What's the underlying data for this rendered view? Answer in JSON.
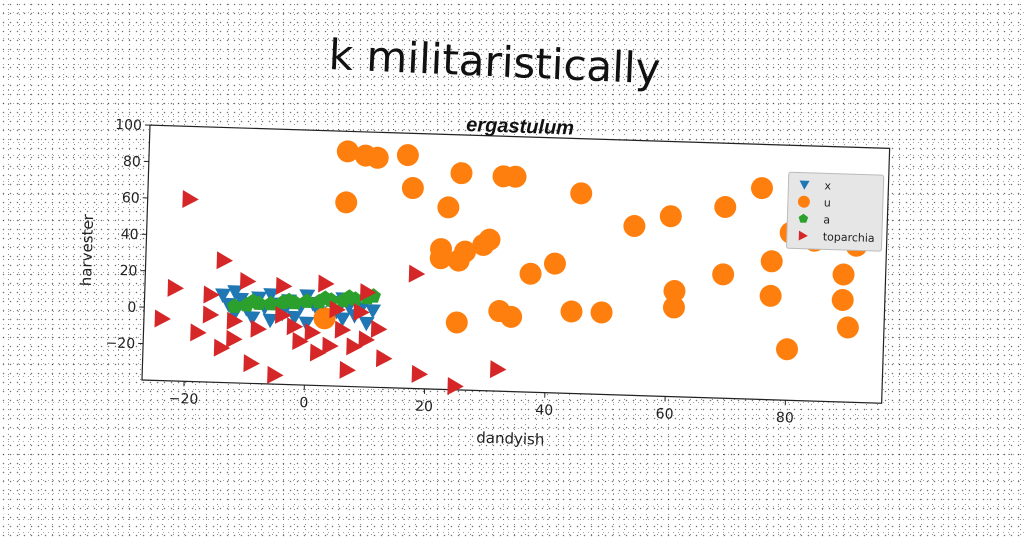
{
  "super_title": "k militaristically",
  "chart_data": {
    "type": "scatter",
    "title": "ergastulum",
    "xlabel": "dandyish",
    "ylabel": "harvester",
    "xlim": [
      -27,
      96
    ],
    "ylim": [
      -40,
      100
    ],
    "xticks": [
      -20,
      0,
      20,
      40,
      60,
      80
    ],
    "yticks": [
      -20,
      0,
      20,
      40,
      60,
      80,
      100
    ],
    "grid": false,
    "legend_position": "top-right",
    "series": [
      {
        "name": "x",
        "marker": "triangle-down",
        "color": "#1f77b4",
        "points": [
          [
            -14,
            8
          ],
          [
            -13,
            3
          ],
          [
            -12,
            -2
          ],
          [
            -11,
            6
          ],
          [
            -10,
            1
          ],
          [
            -9,
            -4
          ],
          [
            -8,
            7
          ],
          [
            -7,
            2
          ],
          [
            -6,
            -5
          ],
          [
            -5,
            4
          ],
          [
            -4,
            -1
          ],
          [
            -3,
            6
          ],
          [
            -2,
            -3
          ],
          [
            -1,
            3
          ],
          [
            0,
            -6
          ],
          [
            1,
            5
          ],
          [
            2,
            0
          ],
          [
            3,
            -4
          ],
          [
            4,
            6
          ],
          [
            5,
            1
          ],
          [
            6,
            -3
          ],
          [
            7,
            4
          ],
          [
            8,
            -1
          ],
          [
            9,
            3
          ],
          [
            10,
            -5
          ],
          [
            11,
            2
          ],
          [
            -12,
            10
          ],
          [
            -6,
            9
          ],
          [
            0,
            9
          ],
          [
            6,
            8
          ]
        ]
      },
      {
        "name": "u",
        "marker": "circle",
        "color": "#ff7f0e",
        "points": [
          [
            6,
            89
          ],
          [
            9,
            87
          ],
          [
            11,
            86
          ],
          [
            16,
            88
          ],
          [
            17,
            70
          ],
          [
            6,
            61
          ],
          [
            23,
            60
          ],
          [
            25,
            79
          ],
          [
            32,
            78
          ],
          [
            34,
            78
          ],
          [
            45,
            70
          ],
          [
            54,
            53
          ],
          [
            60,
            59
          ],
          [
            69,
            65
          ],
          [
            75,
            76
          ],
          [
            80,
            52
          ],
          [
            84,
            48
          ],
          [
            91,
            46
          ],
          [
            22,
            37
          ],
          [
            22,
            32
          ],
          [
            25,
            31
          ],
          [
            26,
            36
          ],
          [
            29,
            40
          ],
          [
            30,
            43
          ],
          [
            37,
            25
          ],
          [
            41,
            31
          ],
          [
            61,
            18
          ],
          [
            61,
            9
          ],
          [
            69,
            28
          ],
          [
            77,
            36
          ],
          [
            77,
            17
          ],
          [
            80,
            -12
          ],
          [
            89,
            30
          ],
          [
            89,
            16
          ],
          [
            90,
            1
          ],
          [
            3,
            -3
          ],
          [
            25,
            -3
          ],
          [
            32,
            4
          ],
          [
            34,
            1
          ],
          [
            44,
            5
          ],
          [
            49,
            5
          ]
        ]
      },
      {
        "name": "a",
        "marker": "pentagon",
        "color": "#2ca02c",
        "points": [
          [
            -12,
            2
          ],
          [
            -10,
            3
          ],
          [
            -8,
            4
          ],
          [
            -6,
            4
          ],
          [
            -4,
            5
          ],
          [
            -2,
            5
          ],
          [
            0,
            6
          ],
          [
            2,
            6
          ],
          [
            4,
            7
          ],
          [
            6,
            7
          ],
          [
            8,
            8
          ],
          [
            10,
            9
          ],
          [
            11,
            10
          ],
          [
            -9,
            5
          ],
          [
            -3,
            6
          ],
          [
            3,
            8
          ],
          [
            7,
            9
          ]
        ]
      },
      {
        "name": "toparchia",
        "marker": "triangle-right",
        "color": "#d62728",
        "points": [
          [
            -20,
            60
          ],
          [
            -14,
            27
          ],
          [
            -10,
            16
          ],
          [
            -4,
            14
          ],
          [
            3,
            16
          ],
          [
            10,
            12
          ],
          [
            18,
            23
          ],
          [
            -22,
            11
          ],
          [
            -16,
            8
          ],
          [
            -24,
            -6
          ],
          [
            -18,
            -13
          ],
          [
            -16,
            -3
          ],
          [
            -14,
            -21
          ],
          [
            -12,
            -16
          ],
          [
            -9,
            -29
          ],
          [
            -5,
            -35
          ],
          [
            -1,
            -16
          ],
          [
            1,
            -11
          ],
          [
            2,
            -22
          ],
          [
            4,
            -18
          ],
          [
            6,
            -9
          ],
          [
            8,
            -18
          ],
          [
            10,
            -14
          ],
          [
            12,
            -8
          ],
          [
            13,
            -24
          ],
          [
            7,
            -31
          ],
          [
            19,
            -32
          ],
          [
            25,
            -38
          ],
          [
            32,
            -28
          ],
          [
            -12,
            -6
          ],
          [
            -8,
            -10
          ],
          [
            -4,
            -2
          ],
          [
            -2,
            -8
          ],
          [
            5,
            2
          ],
          [
            9,
            1
          ]
        ]
      }
    ]
  }
}
